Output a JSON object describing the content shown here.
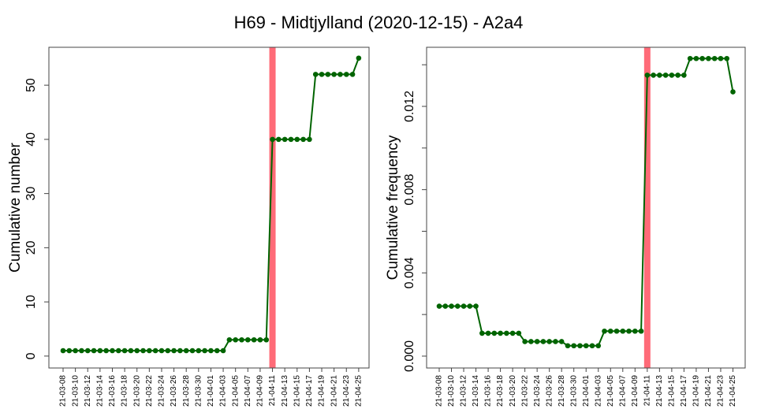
{
  "title": "H69 - Midtjylland (2020-12-15) - A2a4",
  "chart_data": [
    {
      "type": "line",
      "ylabel": "Cumulative number",
      "categories": [
        "21-03-08",
        null,
        "21-03-10",
        null,
        "21-03-12",
        null,
        "21-03-14",
        null,
        "21-03-16",
        null,
        "21-03-18",
        null,
        "21-03-20",
        null,
        "21-03-22",
        null,
        "21-03-24",
        null,
        "21-03-26",
        null,
        "21-03-28",
        null,
        "21-03-30",
        null,
        "21-04-01",
        null,
        "21-04-03",
        null,
        "21-04-05",
        null,
        "21-04-07",
        null,
        "21-04-09",
        null,
        "21-04-11",
        null,
        "21-04-13",
        null,
        "21-04-15",
        null,
        "21-04-17",
        null,
        "21-04-19",
        null,
        "21-04-21",
        null,
        "21-04-23",
        null,
        "21-04-25"
      ],
      "values": [
        1,
        1,
        1,
        1,
        1,
        1,
        1,
        1,
        1,
        1,
        1,
        1,
        1,
        1,
        1,
        1,
        1,
        1,
        1,
        1,
        1,
        1,
        1,
        1,
        1,
        1,
        1,
        3,
        3,
        3,
        3,
        3,
        3,
        3,
        40,
        40,
        40,
        40,
        40,
        40,
        40,
        52,
        52,
        52,
        52,
        52,
        52,
        52,
        55
      ],
      "color": "#006400",
      "vline_index": 34,
      "vline_color": "#ff6b78",
      "ylim": [
        -2.2,
        57.0
      ],
      "yticks": [
        0,
        10,
        20,
        30,
        40,
        50
      ]
    },
    {
      "type": "line",
      "ylabel": "Cumulative frequency",
      "categories": [
        "21-03-08",
        null,
        "21-03-10",
        null,
        "21-03-12",
        null,
        "21-03-14",
        null,
        "21-03-16",
        null,
        "21-03-18",
        null,
        "21-03-20",
        null,
        "21-03-22",
        null,
        "21-03-24",
        null,
        "21-03-26",
        null,
        "21-03-28",
        null,
        "21-03-30",
        null,
        "21-04-01",
        null,
        "21-04-03",
        null,
        "21-04-05",
        null,
        "21-04-07",
        null,
        "21-04-09",
        null,
        "21-04-11",
        null,
        "21-04-13",
        null,
        "21-04-15",
        null,
        "21-04-17",
        null,
        "21-04-19",
        null,
        "21-04-21",
        null,
        "21-04-23",
        null,
        "21-04-25"
      ],
      "values": [
        0.0024,
        0.0024,
        0.0024,
        0.0024,
        0.0024,
        0.0024,
        0.0024,
        0.0011,
        0.0011,
        0.0011,
        0.0011,
        0.0011,
        0.0011,
        0.0011,
        0.0007,
        0.0007,
        0.0007,
        0.0007,
        0.0007,
        0.0007,
        0.0007,
        0.0005,
        0.0005,
        0.0005,
        0.0005,
        0.0005,
        0.0005,
        0.0012,
        0.0012,
        0.0012,
        0.0012,
        0.0012,
        0.0012,
        0.0012,
        0.0135,
        0.0135,
        0.0135,
        0.0135,
        0.0135,
        0.0135,
        0.0135,
        0.0143,
        0.0143,
        0.0143,
        0.0143,
        0.0143,
        0.0143,
        0.0143,
        0.0127
      ],
      "color": "#006400",
      "vline_index": 34,
      "vline_color": "#ff6b78",
      "ylim": [
        -0.00057,
        0.01484
      ],
      "yticks": [
        {
          "value": 0,
          "label": "0.000"
        },
        {
          "value": 0.002,
          "label": null
        },
        {
          "value": 0.004,
          "label": "0.004"
        },
        {
          "value": 0.006,
          "label": null
        },
        {
          "value": 0.008,
          "label": "0.008"
        },
        {
          "value": 0.01,
          "label": null
        },
        {
          "value": 0.012,
          "label": "0.012"
        },
        {
          "value": 0.014,
          "label": null
        }
      ]
    }
  ]
}
